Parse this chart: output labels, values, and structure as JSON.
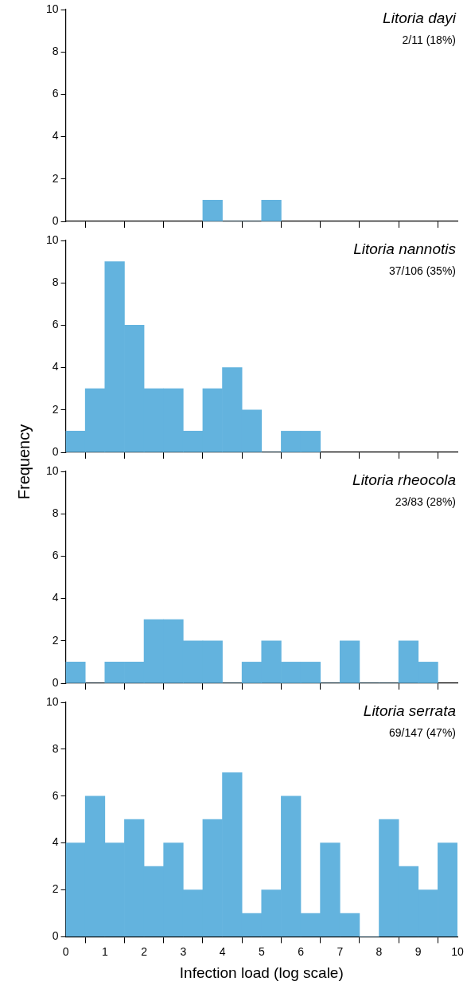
{
  "chart_data": [
    {
      "type": "histogram",
      "title": "Litoria dayi",
      "annotations": [
        "2/11 (18%)"
      ],
      "bins": [
        3.5,
        4,
        4.5,
        5,
        5.5
      ],
      "values": [
        1,
        0,
        0,
        1
      ],
      "color": "#63b3de",
      "xlim": [
        0,
        10
      ],
      "xticks": [
        0,
        1,
        2,
        3,
        4,
        5,
        6,
        7,
        8,
        9,
        10
      ],
      "ylim": [
        0,
        10
      ],
      "yticks": [
        0,
        2,
        4,
        6,
        8,
        10
      ],
      "tick_labels": "y"
    },
    {
      "type": "histogram",
      "title": "Litoria nannotis",
      "annotations": [
        "37/106 (35%)"
      ],
      "ylabel": "Frequency",
      "bins": [
        0,
        0.5,
        1,
        1.5,
        2,
        2.5,
        3,
        3.5,
        4,
        4.5,
        5,
        5.5,
        6,
        6.5
      ],
      "values": [
        1,
        3,
        9,
        6,
        3,
        3,
        1,
        3,
        4,
        2,
        0,
        1,
        1
      ],
      "color": "#63b3de",
      "xlim": [
        0,
        10
      ],
      "xticks": [
        0,
        1,
        2,
        3,
        4,
        5,
        6,
        7,
        8,
        9,
        10
      ],
      "ylim": [
        0,
        10
      ],
      "yticks": [
        0,
        2,
        4,
        6,
        8,
        10
      ],
      "tick_labels": "y"
    },
    {
      "type": "histogram",
      "title": "Litoria rheocola",
      "annotations": [
        "23/83 (28%)"
      ],
      "bins": [
        0,
        0.5,
        1,
        1.5,
        2,
        2.5,
        3,
        3.5,
        4,
        4.5,
        5,
        5.5,
        6,
        6.5,
        7,
        7.5,
        8,
        8.5,
        9,
        9.5
      ],
      "values": [
        1,
        0,
        1,
        1,
        3,
        3,
        2,
        2,
        0,
        1,
        2,
        1,
        1,
        0,
        2,
        0,
        0,
        2,
        1
      ],
      "color": "#63b3de",
      "xlim": [
        0,
        10
      ],
      "xticks": [
        0,
        1,
        2,
        3,
        4,
        5,
        6,
        7,
        8,
        9,
        10
      ],
      "ylim": [
        0,
        10
      ],
      "yticks": [
        0,
        2,
        4,
        6,
        8,
        10
      ],
      "tick_labels": "y"
    },
    {
      "type": "histogram",
      "title": "Litoria serrata",
      "annotations": [
        "69/147 (47%)"
      ],
      "xlabel": "Infection load (log scale)",
      "bins": [
        0,
        0.5,
        1,
        1.5,
        2,
        2.5,
        3,
        3.5,
        4,
        4.5,
        5,
        5.5,
        6,
        6.5,
        7,
        7.5,
        8,
        8.5,
        9,
        9.5,
        10
      ],
      "values": [
        4,
        6,
        4,
        5,
        3,
        4,
        2,
        5,
        7,
        1,
        2,
        6,
        1,
        4,
        1,
        0,
        5,
        3,
        2,
        4
      ],
      "color": "#63b3de",
      "xlim": [
        0,
        10
      ],
      "xticks": [
        0,
        1,
        2,
        3,
        4,
        5,
        6,
        7,
        8,
        9,
        10
      ],
      "ylim": [
        0,
        10
      ],
      "yticks": [
        0,
        2,
        4,
        6,
        8,
        10
      ]
    }
  ]
}
